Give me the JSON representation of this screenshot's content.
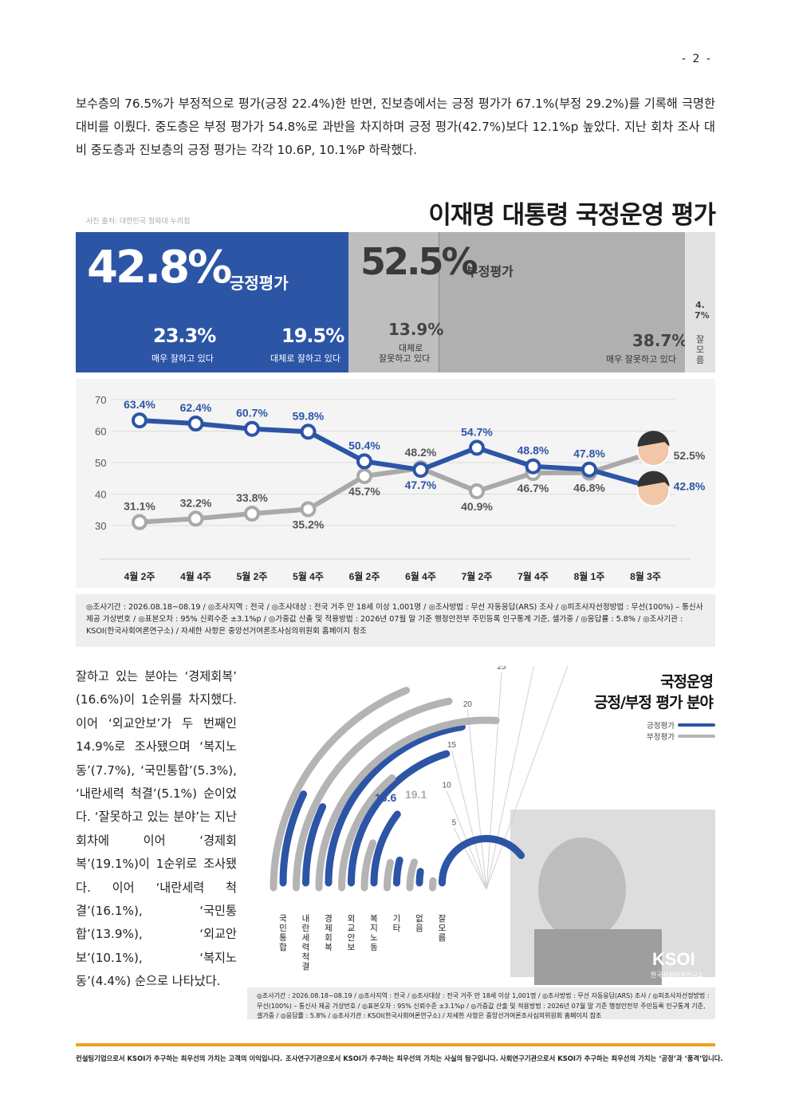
{
  "page_number": "- 2 -",
  "paragraph": "보수층의 76.5%가 부정적으로 평가(긍정 22.4%)한 반면, 진보층에서는 긍정 평가가 67.1%(부정 29.2%)를 기록해 극명한 대비를 이뤘다. 중도층은 부정 평가가 54.8%로 과반을 차지하며 긍정 평가(42.7%)보다 12.1%p 높았다. 지난 회차 조사 대비 중도층과 진보층의 긍정 평가는 각각 10.6P, 10.1%P 하락했다.",
  "photo_credit": "사진 출처: 대한민국 청와대 누리집",
  "main_title": "이재명 대통령 국정운영 평가",
  "banner": {
    "positive": {
      "pct": "42.8%",
      "label": "긍정평가",
      "sub1": {
        "pct": "23.3%",
        "label": "매우 잘하고 있다"
      },
      "sub2": {
        "pct": "19.5%",
        "label": "대체로 잘하고 있다"
      }
    },
    "negative": {
      "pct": "52.5%",
      "label": "부정평가",
      "sub1": {
        "pct": "13.9%",
        "label1": "대체로",
        "label2": "잘못하고 있다"
      },
      "sub2": {
        "pct": "38.7%",
        "label": "매우 잘못하고 있다"
      }
    },
    "unknown": {
      "pct": "4.7%",
      "label": "잘모름"
    },
    "colors": {
      "positive": "#2c55a6",
      "negative": "#bebebe"
    }
  },
  "chart_data": [
    {
      "type": "line",
      "categories": [
        "4월 2주",
        "4월 4주",
        "5월 2주",
        "5월 4주",
        "6월 2주",
        "6월 4주",
        "7월 2주",
        "7월 4주",
        "8월 1주",
        "8월 3주"
      ],
      "yticks": [
        70,
        60,
        50,
        40,
        30
      ],
      "ylim": [
        25,
        72
      ],
      "series": [
        {
          "name": "긍정평가",
          "color": "#2c55a6",
          "values": [
            63.4,
            62.4,
            60.7,
            59.8,
            50.4,
            47.7,
            54.7,
            48.8,
            47.8,
            42.8
          ],
          "labels": [
            "63.4%",
            "62.4%",
            "60.7%",
            "59.8%",
            "50.4%",
            "47.7%",
            "54.7%",
            "48.8%",
            "47.8%",
            "42.8%"
          ]
        },
        {
          "name": "부정평가",
          "color": "#a9a9a9",
          "values": [
            31.1,
            32.2,
            33.8,
            35.2,
            45.7,
            48.2,
            40.9,
            46.7,
            46.8,
            52.5
          ],
          "labels": [
            "31.1%",
            "32.2%",
            "33.8%",
            "35.2%",
            "45.7%",
            "48.2%",
            "40.9%",
            "46.7%",
            "46.8%",
            "52.5%"
          ]
        }
      ],
      "grid": true
    },
    {
      "type": "bar",
      "subtype": "radial",
      "title_line1": "국정운영",
      "title_line2": "긍정/부정 평가 분야",
      "categories": [
        "국민통합",
        "내란세력척결",
        "경제회복",
        "외교안보",
        "복지노동",
        "기타",
        "없음",
        "잘모름"
      ],
      "axis_ticks": [
        5,
        10,
        15,
        20,
        25,
        30,
        35
      ],
      "series": [
        {
          "name": "긍정평가",
          "color": "#2c55a6",
          "values": [
            5.3,
            5.1,
            16.6,
            14.9,
            7.7,
            3.0,
            2.0,
            29.0
          ]
        },
        {
          "name": "부정평가",
          "color": "#b4b4b4",
          "values": [
            13.9,
            16.1,
            19.1,
            10.1,
            4.4,
            3.0,
            4.0,
            1.5
          ]
        }
      ],
      "labels": {
        "positive_max": "16.6",
        "negative_max": "19.1"
      }
    }
  ],
  "survey_note": "◎조사기간 : 2026.08.18~08.19 / ◎조사지역 : 전국 / ◎조사대상 : 전국 거주 만 18세 이상 1,001명 / ◎조사방법 : 무선 자동응답(ARS) 조사 / ◎피조사자선정방법 : 무선(100%) – 통신사 제공 가상번호 / ◎표본오차 : 95% 신뢰수준 ±3.1%p / ◎가중값 산출 및 적용방법 : 2026년 07월 말 기준 행정안전부 주민등록 인구통계 기준, 셀가중 / ◎응답률 : 5.8% / ◎조사기관 : KSOI(한국사회여론연구소) / 자세한 사항은 중앙선거여론조사심의위원회 홈페이지 참조",
  "side_text": "잘하고 있는 분야는 ‘경제회복’ (16.6%)이 1순위를 차지했다. 이어 ‘외교안보’가 두 번째인 14.9%로 조사됐으며 ‘복지노동’(7.7%), ‘국민통합’(5.3%), ‘내란세력 척결’(5.1%) 순이었다. ‘잘못하고 있는 분야’는 지난 회차에 이어 ‘경제회복’(19.1%)이 1순위로 조사됐다. 이어 ‘내란세력 척결’(16.1%), ‘국민통합’(13.9%), ‘외교안보’(10.1%), ‘복지노동’(4.4%) 순으로 나타났다.",
  "logo": {
    "text": "KSOI",
    "sub": "한국사회여론연구소"
  },
  "footer": [
    "컨설팅기업으로서 KSOI가 추구하는 최우선의 가치는 고객의 이익입니다.",
    "조사연구기관으로서 KSOI가 추구하는 최우선의 가치는 사실의 탐구입니다.",
    "사회연구기관으로서 KSOI가 추구하는 최우선의 가치는 ‘공정’과 ‘품격’입니다."
  ]
}
